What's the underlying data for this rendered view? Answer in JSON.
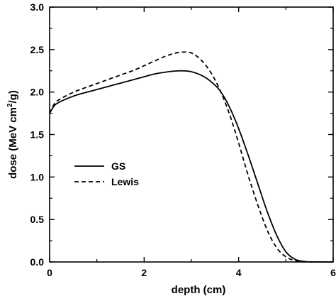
{
  "chart_data": {
    "type": "line",
    "title": "",
    "xlabel": "depth (cm)",
    "ylabel": {
      "pre": "dose (MeV cm",
      "sup": "2",
      "post": "/g)"
    },
    "xlim": [
      0,
      6
    ],
    "ylim": [
      0,
      3.0
    ],
    "xticks": [
      0,
      2,
      4,
      6
    ],
    "xtick_labels": [
      "0",
      "2",
      "4",
      "6"
    ],
    "yticks": [
      0,
      0.5,
      1.0,
      1.5,
      2.0,
      2.5,
      3.0
    ],
    "ytick_labels": [
      "0.0",
      "0.5",
      "1.0",
      "1.5",
      "2.0",
      "2.5",
      "3.0"
    ],
    "grid": false,
    "legend_position": "left",
    "series": [
      {
        "name": "GS",
        "style": "solid",
        "color": "#000000",
        "x": [
          0,
          0.1,
          0.2,
          0.4,
          0.6,
          0.8,
          1.0,
          1.2,
          1.4,
          1.6,
          1.8,
          2.0,
          2.2,
          2.4,
          2.6,
          2.8,
          3.0,
          3.2,
          3.4,
          3.6,
          3.8,
          4.0,
          4.2,
          4.4,
          4.6,
          4.8,
          5.0,
          5.2,
          5.4,
          5.6,
          5.8,
          6.0
        ],
        "y": [
          1.75,
          1.84,
          1.88,
          1.93,
          1.97,
          2.0,
          2.03,
          2.06,
          2.09,
          2.12,
          2.15,
          2.18,
          2.21,
          2.23,
          2.245,
          2.25,
          2.24,
          2.2,
          2.13,
          2.02,
          1.83,
          1.57,
          1.26,
          0.93,
          0.6,
          0.32,
          0.12,
          0.03,
          0.005,
          0.0,
          0.0,
          0.0
        ]
      },
      {
        "name": "Lewis",
        "style": "dashed",
        "color": "#000000",
        "x": [
          0,
          0.1,
          0.2,
          0.4,
          0.6,
          0.8,
          1.0,
          1.2,
          1.4,
          1.6,
          1.8,
          2.0,
          2.2,
          2.4,
          2.6,
          2.8,
          3.0,
          3.2,
          3.4,
          3.6,
          3.8,
          4.0,
          4.2,
          4.4,
          4.6,
          4.8,
          5.0,
          5.2,
          5.4,
          5.6,
          5.8,
          6.0
        ],
        "y": [
          1.75,
          1.86,
          1.91,
          1.97,
          2.02,
          2.06,
          2.1,
          2.14,
          2.18,
          2.22,
          2.26,
          2.31,
          2.36,
          2.41,
          2.45,
          2.47,
          2.46,
          2.38,
          2.24,
          2.03,
          1.75,
          1.4,
          1.02,
          0.68,
          0.38,
          0.17,
          0.06,
          0.015,
          0.0,
          0.0,
          0.0,
          0.0
        ]
      }
    ]
  }
}
